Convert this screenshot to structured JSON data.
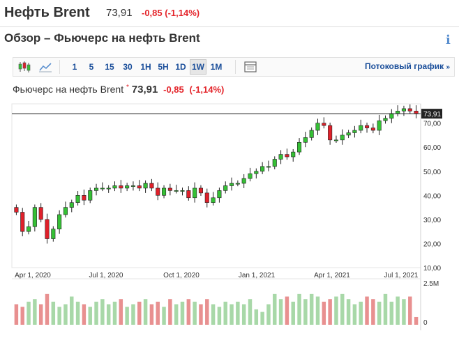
{
  "header": {
    "title": "Нефть Brent",
    "price": "73,91",
    "change": "-0,85 (-1,14%)"
  },
  "subheader": {
    "title": "Обзор – Фьючерс на нефть Brent",
    "info_label": "i"
  },
  "toolbar": {
    "icons": [
      "candlestick-icon",
      "line-chart-icon",
      "table-icon"
    ],
    "intervals": [
      "1",
      "5",
      "15",
      "30",
      "1H",
      "5H",
      "1D",
      "1W",
      "1M"
    ],
    "active_interval": "1W",
    "stream_label": "Потоковый график",
    "stream_arrow": "»"
  },
  "legend": {
    "name": "Фьючерс на нефть Brent",
    "star": "*",
    "price": "73,91",
    "change": "-0,85",
    "change_pct": "(-1,14%)"
  },
  "colors": {
    "up": "#35c035",
    "down": "#e0202a",
    "vol_up": "#a8d8a8",
    "vol_down": "#e89090",
    "accent": "#1a4e9a",
    "negative": "#e4252b"
  },
  "chart_data": {
    "type": "candlestick",
    "yticks": [
      "70,00",
      "60,00",
      "50,00",
      "40,00",
      "30,00",
      "20,00",
      "10,00"
    ],
    "ytick_values": [
      70,
      60,
      50,
      40,
      30,
      20,
      10
    ],
    "ylim": [
      10,
      78
    ],
    "last_price_label": "73,91",
    "last_price": 73.91,
    "xticks": [
      "Apr 1, 2020",
      "Jul 1, 2020",
      "Oct 1, 2020",
      "Jan 1, 2021",
      "Apr 1, 2021",
      "Jul 1, 2021"
    ],
    "volume_ticks": [
      "2.5M",
      "0"
    ],
    "closes": [
      33,
      25,
      27,
      35,
      30,
      22,
      26,
      32,
      35,
      37,
      40,
      38,
      42,
      43,
      43,
      43,
      44,
      43,
      44,
      44,
      43,
      45,
      43,
      40,
      43,
      42,
      42,
      42,
      39,
      43,
      41,
      37,
      39,
      42,
      44,
      45,
      45,
      47,
      49,
      50,
      52,
      52,
      55,
      57,
      56,
      58,
      62,
      64,
      67,
      70,
      69,
      63,
      63,
      65,
      66,
      67,
      69,
      68,
      67,
      71,
      72,
      74,
      75,
      76,
      75,
      74
    ],
    "volumes": [
      0.8,
      0.7,
      0.9,
      1.0,
      0.8,
      1.2,
      0.9,
      0.7,
      0.8,
      1.1,
      0.9,
      0.8,
      0.7,
      0.9,
      1.0,
      0.8,
      0.9,
      1.0,
      0.7,
      0.8,
      0.9,
      1.0,
      0.8,
      0.9,
      0.7,
      1.0,
      0.8,
      0.9,
      1.0,
      0.9,
      0.8,
      1.0,
      0.8,
      0.7,
      0.9,
      0.8,
      0.9,
      0.8,
      1.0,
      0.6,
      0.5,
      0.8,
      1.2,
      1.0,
      1.1,
      0.9,
      1.2,
      1.0,
      1.2,
      1.1,
      0.9,
      1.0,
      1.1,
      1.2,
      1.0,
      0.8,
      0.9,
      1.1,
      1.0,
      0.9,
      1.2,
      0.9,
      1.1,
      1.0,
      1.1,
      0.3
    ]
  }
}
